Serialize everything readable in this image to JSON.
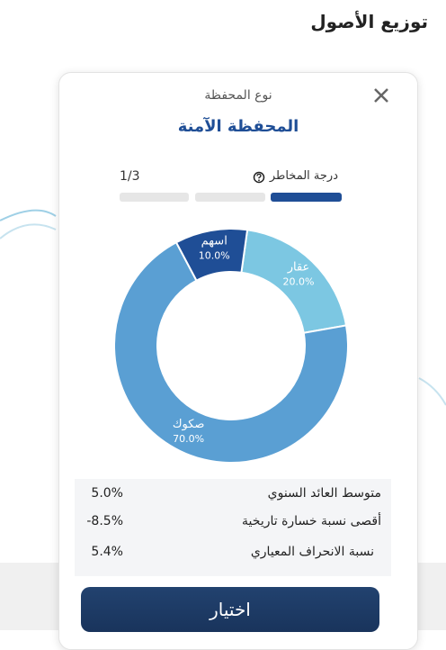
{
  "header": {
    "title": "توزيع الأصول"
  },
  "card": {
    "subtitle": "نوع المحفظة",
    "portfolio": "المحفظة الآمنة",
    "risk_label": "درجة المخاطر",
    "risk_level": "1/3",
    "stats": [
      [
        "متوسط العائد السنوي",
        "5.0%"
      ],
      [
        "أقصى نسبة خسارة تاريخية",
        "-8.5%"
      ],
      [
        "نسبة الانحراف المعياري",
        "5.4%"
      ]
    ],
    "button": "اختيار"
  },
  "chart_data": {
    "type": "donut",
    "categories": [
      "عقار",
      "صكوك",
      "اسهم"
    ],
    "values": [
      20,
      70,
      10
    ],
    "value_labels": [
      "20.0%",
      "70.0%",
      "10.0%"
    ],
    "colors": [
      "#7cc7e2",
      "#5a9fd3",
      "#1f4e96"
    ]
  }
}
